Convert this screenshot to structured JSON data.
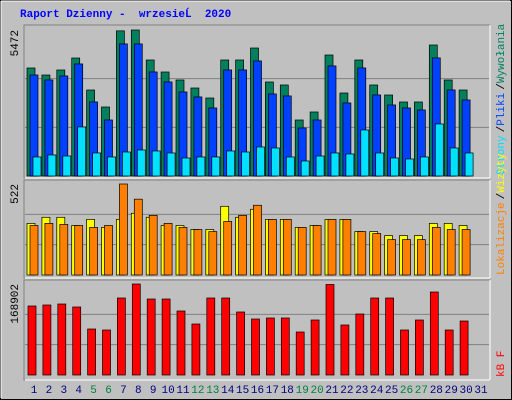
{
  "title": "Raport Dzienny -  wrzesieĹ  2020",
  "legend_separator": "/",
  "chart_data": [
    {
      "type": "bar",
      "series": [
        {
          "name": "Wywołania",
          "color": "#00805c",
          "values": [
            4048,
            3785,
            3973,
            4422,
            3223,
            2586,
            5440,
            5472,
            4348,
            3898,
            3598,
            3298,
            2923,
            4348,
            4348,
            4797,
            3523,
            3411,
            2099,
            2399,
            4535,
            3111,
            4348,
            3411,
            3036,
            2774,
            2774,
            4910,
            3598,
            3223,
            null
          ]
        },
        {
          "name": "Pliki",
          "color": "#0040ff",
          "values": [
            3786,
            3600,
            3750,
            4200,
            2775,
            2100,
            4950,
            4950,
            3900,
            3525,
            3150,
            2963,
            2550,
            3975,
            3975,
            4313,
            3075,
            3000,
            1800,
            2100,
            4125,
            2738,
            4050,
            3038,
            2663,
            2550,
            2475,
            4425,
            3225,
            2850,
            null
          ]
        },
        {
          "name": "Strony",
          "color": "#00e0ff",
          "values": [
            713,
            788,
            750,
            1838,
            863,
            713,
            900,
            975,
            938,
            863,
            675,
            713,
            713,
            938,
            900,
            1088,
            1050,
            713,
            563,
            750,
            863,
            825,
            1725,
            863,
            675,
            638,
            713,
            1950,
            1050,
            863,
            null
          ]
        }
      ],
      "ylim": [
        0,
        5472
      ],
      "yticks": [
        5472
      ],
      "grid": true
    },
    {
      "type": "bar",
      "series": [
        {
          "name": "Wizyty",
          "color": "#ffff00",
          "values": [
            296,
            331,
            331,
            284,
            319,
            273,
            319,
            354,
            331,
            284,
            284,
            261,
            261,
            394,
            331,
            377,
            319,
            319,
            273,
            284,
            319,
            319,
            249,
            249,
            226,
            226,
            226,
            296,
            296,
            284,
            null
          ]
        },
        {
          "name": "Lokalizacje",
          "color": "#ff8000",
          "values": [
            284,
            296,
            290,
            284,
            273,
            284,
            522,
            435,
            342,
            296,
            273,
            261,
            249,
            307,
            342,
            400,
            319,
            319,
            273,
            284,
            319,
            319,
            249,
            238,
            203,
            203,
            203,
            273,
            261,
            261,
            null
          ]
        }
      ],
      "ylim": [
        0,
        522
      ],
      "yticks": [
        522
      ],
      "grid": true
    },
    {
      "type": "bar",
      "categories": [
        "1",
        "2",
        "3",
        "4",
        "5",
        "6",
        "7",
        "8",
        "9",
        "10",
        "11",
        "12",
        "13",
        "14",
        "15",
        "16",
        "17",
        "18",
        "19",
        "20",
        "21",
        "22",
        "23",
        "24",
        "25",
        "26",
        "27",
        "28",
        "29",
        "30",
        "31"
      ],
      "category_colors": [
        "#000080",
        "#000080",
        "#000080",
        "#000080",
        "#008040",
        "#008040",
        "#000080",
        "#000080",
        "#000080",
        "#000080",
        "#000080",
        "#008040",
        "#008040",
        "#000080",
        "#000080",
        "#000080",
        "#000080",
        "#000080",
        "#008040",
        "#008040",
        "#000080",
        "#000080",
        "#000080",
        "#000080",
        "#000080",
        "#008040",
        "#008040",
        "#000080",
        "#000080",
        "#000080",
        "#000080"
      ],
      "series": [
        {
          "name": "kB F",
          "color": "#ff0000",
          "values": [
            128064,
            129920,
            131776,
            126208,
            85376,
            83520,
            142912,
            168902,
            141056,
            141056,
            118784,
            94656,
            142912,
            142912,
            116928,
            103936,
            105792,
            105792,
            79808,
            102080,
            168000,
            92800,
            113216,
            142912,
            142912,
            83520,
            102080,
            154048,
            83520,
            100224,
            null
          ]
        }
      ],
      "ylim": [
        0,
        168902
      ],
      "yticks": [
        168902
      ],
      "grid": true
    }
  ]
}
